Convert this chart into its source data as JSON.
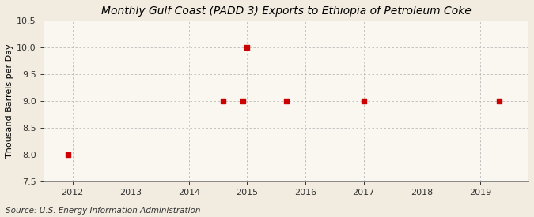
{
  "title": "Monthly Gulf Coast (PADD 3) Exports to Ethiopia of Petroleum Coke",
  "ylabel": "Thousand Barrels per Day",
  "source": "Source: U.S. Energy Information Administration",
  "background_color": "#f2ece0",
  "plot_background_color": "#faf7f0",
  "grid_color": "#bbbbbb",
  "point_color": "#cc0000",
  "data_x": [
    2011.92,
    2014.58,
    2014.92,
    2015.0,
    2015.67,
    2017.0,
    2019.33
  ],
  "data_y": [
    8.0,
    9.0,
    9.0,
    10.0,
    9.0,
    9.0,
    9.0
  ],
  "xlim": [
    2011.5,
    2019.83
  ],
  "ylim": [
    7.5,
    10.5
  ],
  "yticks": [
    7.5,
    8.0,
    8.5,
    9.0,
    9.5,
    10.0,
    10.5
  ],
  "xticks": [
    2012,
    2013,
    2014,
    2015,
    2016,
    2017,
    2018,
    2019
  ],
  "title_fontsize": 10,
  "label_fontsize": 8,
  "tick_fontsize": 8,
  "source_fontsize": 7.5,
  "marker_size": 4
}
